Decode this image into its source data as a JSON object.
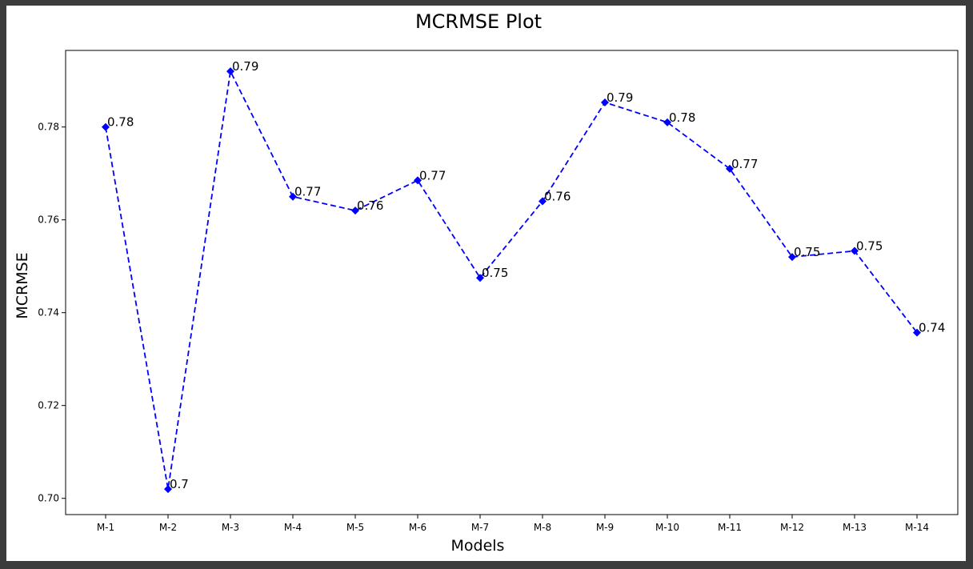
{
  "chart_data": {
    "type": "line",
    "title": "MCRMSE Plot",
    "xlabel": "Models",
    "ylabel": "MCRMSE",
    "categories": [
      "M-1",
      "M-2",
      "M-3",
      "M-4",
      "M-5",
      "M-6",
      "M-7",
      "M-8",
      "M-9",
      "M-10",
      "M-11",
      "M-12",
      "M-13",
      "M-14"
    ],
    "series": [
      {
        "values": [
          0.78,
          0.702,
          0.792,
          0.765,
          0.762,
          0.7685,
          0.7475,
          0.764,
          0.7853,
          0.781,
          0.771,
          0.752,
          0.7533,
          0.7357
        ],
        "data_labels": [
          "0.78",
          "0.7",
          "0.79",
          "0.77",
          "0.76",
          "0.77",
          "0.75",
          "0.76",
          "0.79",
          "0.78",
          "0.77",
          "0.75",
          "0.75",
          "0.74"
        ],
        "color": "#0000ff",
        "line_style": "dashed",
        "marker": "diamond"
      }
    ],
    "yticks": [
      0.7,
      0.72,
      0.74,
      0.76,
      0.78
    ],
    "ytick_labels": [
      "0.70",
      "0.72",
      "0.74",
      "0.76",
      "0.78"
    ],
    "ylim": [
      0.6965,
      0.7965
    ],
    "grid": false,
    "legend": "none"
  }
}
